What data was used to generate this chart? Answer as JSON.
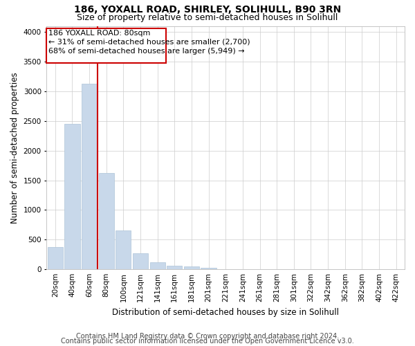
{
  "title_line1": "186, YOXALL ROAD, SHIRLEY, SOLIHULL, B90 3RN",
  "title_line2": "Size of property relative to semi-detached houses in Solihull",
  "xlabel": "Distribution of semi-detached houses by size in Solihull",
  "ylabel": "Number of semi-detached properties",
  "categories": [
    "20sqm",
    "40sqm",
    "60sqm",
    "80sqm",
    "100sqm",
    "121sqm",
    "141sqm",
    "161sqm",
    "181sqm",
    "201sqm",
    "221sqm",
    "241sqm",
    "261sqm",
    "281sqm",
    "301sqm",
    "322sqm",
    "342sqm",
    "362sqm",
    "382sqm",
    "402sqm",
    "422sqm"
  ],
  "values": [
    370,
    2450,
    3130,
    1620,
    660,
    270,
    120,
    60,
    50,
    20,
    0,
    0,
    0,
    0,
    0,
    0,
    0,
    0,
    0,
    0,
    0
  ],
  "bar_color": "#c8d8ea",
  "bar_edgecolor": "#adc4d8",
  "vline_color": "#cc0000",
  "vline_x": 2.5,
  "annotation_text_line1": "186 YOXALL ROAD: 80sqm",
  "annotation_text_line2": "← 31% of semi-detached houses are smaller (2,700)",
  "annotation_text_line3": "68% of semi-detached houses are larger (5,949) →",
  "box_edge_color": "#cc0000",
  "ylim": [
    0,
    4100
  ],
  "yticks": [
    0,
    500,
    1000,
    1500,
    2000,
    2500,
    3000,
    3500,
    4000
  ],
  "footer_line1": "Contains HM Land Registry data © Crown copyright and database right 2024.",
  "footer_line2": "Contains public sector information licensed under the Open Government Licence v3.0.",
  "background_color": "#ffffff",
  "grid_color": "#cccccc",
  "title_fontsize": 10,
  "subtitle_fontsize": 9,
  "axis_label_fontsize": 8.5,
  "tick_fontsize": 7.5,
  "annotation_fontsize": 8,
  "footer_fontsize": 7
}
